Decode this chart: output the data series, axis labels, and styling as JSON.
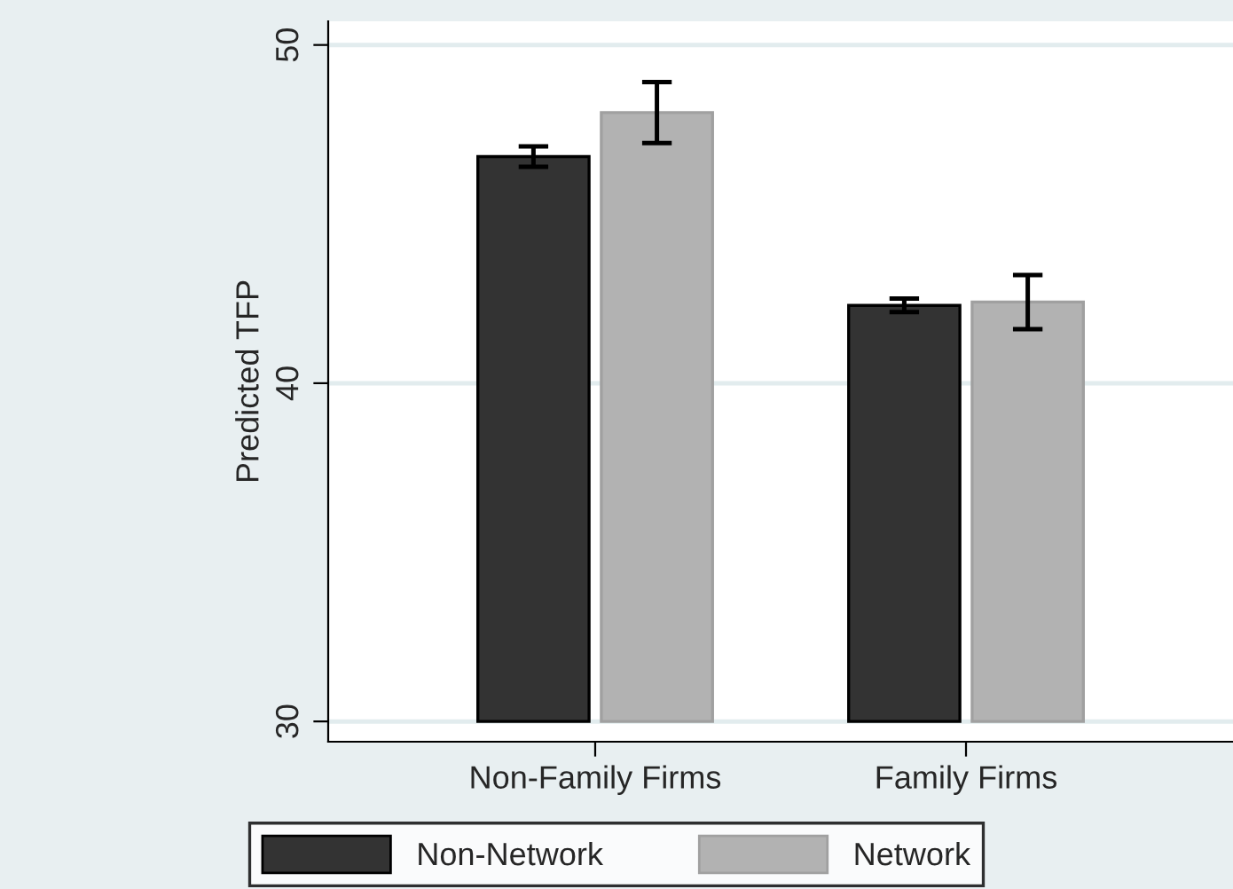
{
  "chart_data": {
    "type": "bar",
    "ylabel": "Predicted TFP",
    "categories": [
      "Non-Family Firms",
      "Family Firms"
    ],
    "series": [
      {
        "name": "Non-Network",
        "color": "#333333",
        "base": [
          30,
          30
        ],
        "values": [
          16.7,
          12.3
        ],
        "errors": [
          0.3,
          0.2
        ]
      },
      {
        "name": "Network",
        "color": "#b2b2b2",
        "base": [
          30,
          30
        ],
        "values": [
          18.0,
          12.4
        ],
        "errors": [
          0.9,
          0.8
        ]
      }
    ],
    "ylim": [
      29.4,
      50.7
    ],
    "yticks": [
      30,
      40,
      50
    ],
    "grid": "y",
    "legend": "bottom"
  }
}
